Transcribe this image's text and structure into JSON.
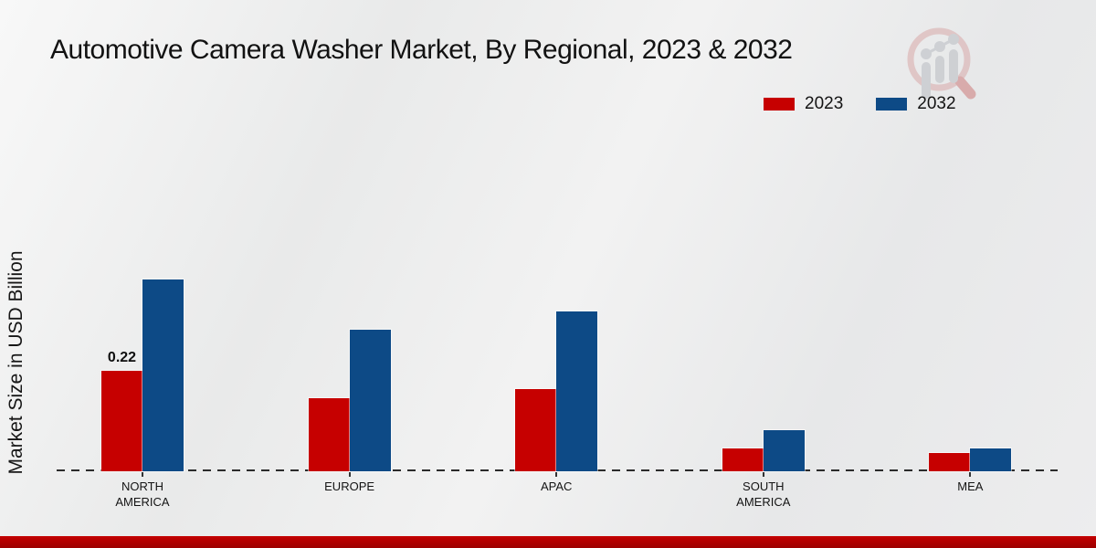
{
  "page": {
    "title": "Automotive Camera Washer Market, By Regional, 2023 & 2032",
    "ylabel": "Market Size in USD Billion"
  },
  "colors": {
    "series_2023": "#c60000",
    "series_2032": "#0d4a86",
    "bottom_accent": "#b00000",
    "baseline": "#2b2b2b",
    "background": "#ebecec"
  },
  "watermark": {
    "name": "market-research-magnifier-logo"
  },
  "chart_data": {
    "type": "bar",
    "title": "Automotive Camera Washer Market, By Regional, 2023 & 2032",
    "xlabel": "",
    "ylabel": "Market Size in USD Billion",
    "categories": [
      "NORTH AMERICA",
      "EUROPE",
      "APAC",
      "SOUTH AMERICA",
      "MEA"
    ],
    "series": [
      {
        "name": "2023",
        "color": "#c60000",
        "values": [
          0.22,
          0.16,
          0.18,
          0.05,
          0.04
        ],
        "data_labels": [
          "0.22",
          "",
          "",
          "",
          ""
        ]
      },
      {
        "name": "2032",
        "color": "#0d4a86",
        "values": [
          0.42,
          0.31,
          0.35,
          0.09,
          0.05
        ],
        "data_labels": [
          "",
          "",
          "",
          "",
          ""
        ]
      }
    ],
    "ylim": [
      0,
      0.45
    ],
    "grid": false,
    "legend_position": "top-right",
    "baseline_style": "dashed",
    "y_axis_ticks_visible": false
  }
}
